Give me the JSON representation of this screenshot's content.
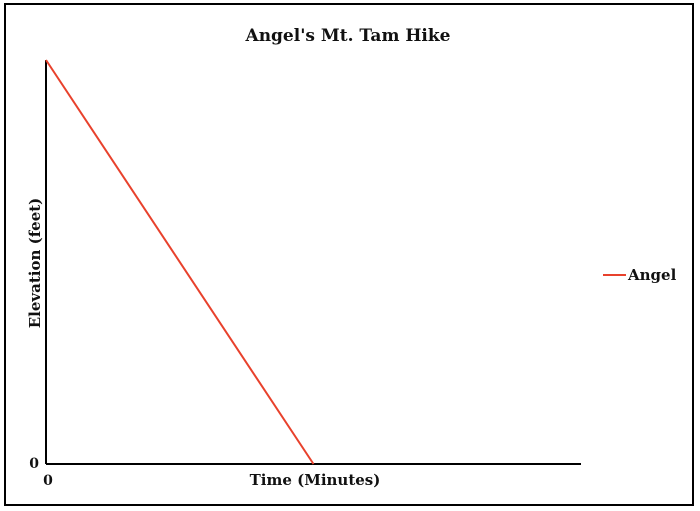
{
  "chart_data": {
    "type": "line",
    "title": "Angel's Mt. Tam Hike",
    "xlabel": "Time (Minutes)",
    "ylabel": "Elevation (feet)",
    "x_ticks": [
      "0"
    ],
    "y_ticks": [
      "0"
    ],
    "xlim": [
      0,
      100
    ],
    "ylim": [
      0,
      100
    ],
    "series": [
      {
        "name": "Angel",
        "color": "#e8412c",
        "points": [
          {
            "x": 0,
            "y": 100
          },
          {
            "x": 50,
            "y": 0
          }
        ]
      }
    ],
    "legend": "right",
    "grid": false
  }
}
